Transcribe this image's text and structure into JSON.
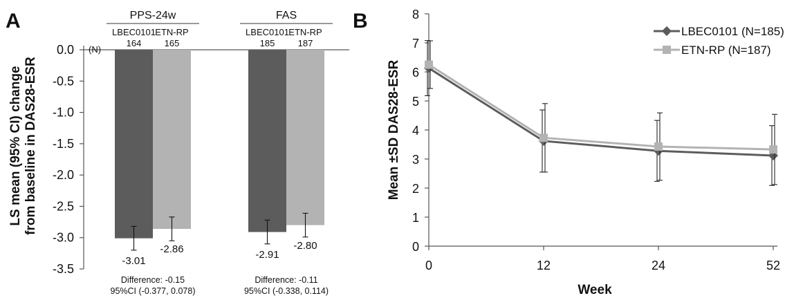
{
  "chart_data": [
    {
      "panel": "A",
      "type": "bar",
      "ylabel": "LS mean (95% CI) change from baseline in DAS28-ESR",
      "ylim": [
        -3.5,
        0.0
      ],
      "yticks": [
        "0.0",
        "-0.5",
        "-1.0",
        "-1.5",
        "-2.0",
        "-2.5",
        "-3.0",
        "-3.5"
      ],
      "n_label": "(N)",
      "colors": {
        "LBEC0101": "#5c5c5c",
        "ETN-RP": "#b3b3b3"
      },
      "groups": [
        {
          "name": "PPS-24w",
          "bars": [
            {
              "name": "LBEC0101",
              "n": "164",
              "value": -3.01,
              "ci": [
                -3.2,
                -2.82
              ],
              "value_label": "-3.01"
            },
            {
              "name": "ETN-RP",
              "n": "165",
              "value": -2.86,
              "ci": [
                -3.05,
                -2.67
              ],
              "value_label": "-2.86"
            }
          ],
          "difference": "Difference: -0.15",
          "ci_text": "95%CI (-0.377, 0.078)"
        },
        {
          "name": "FAS",
          "bars": [
            {
              "name": "LBEC0101",
              "n": "185",
              "value": -2.91,
              "ci": [
                -3.1,
                -2.72
              ],
              "value_label": "-2.91"
            },
            {
              "name": "ETN-RP",
              "n": "187",
              "value": -2.8,
              "ci": [
                -2.99,
                -2.61
              ],
              "value_label": "-2.80"
            }
          ],
          "difference": "Difference: -0.11",
          "ci_text": "95%CI (-0.338, 0.114)"
        }
      ]
    },
    {
      "panel": "B",
      "type": "line",
      "xlabel": "Week",
      "ylabel": "Mean ±SD DAS28-ESR",
      "categories": [
        "0",
        "12",
        "24",
        "52"
      ],
      "ylim": [
        0,
        8
      ],
      "yticks": [
        "0",
        "1",
        "2",
        "3",
        "4",
        "5",
        "6",
        "7",
        "8"
      ],
      "legend_position": "top-right",
      "series": [
        {
          "name": "LBEC0101 (N=185)",
          "color": "#5c5c5c",
          "marker": "diamond",
          "values": [
            6.13,
            3.62,
            3.28,
            3.12
          ],
          "sd": [
            0.95,
            1.07,
            1.05,
            1.03
          ]
        },
        {
          "name": "ETN-RP (N=187)",
          "color": "#b3b3b3",
          "marker": "square",
          "values": [
            6.25,
            3.73,
            3.43,
            3.33
          ],
          "sd": [
            0.82,
            1.18,
            1.16,
            1.21
          ]
        }
      ]
    }
  ]
}
